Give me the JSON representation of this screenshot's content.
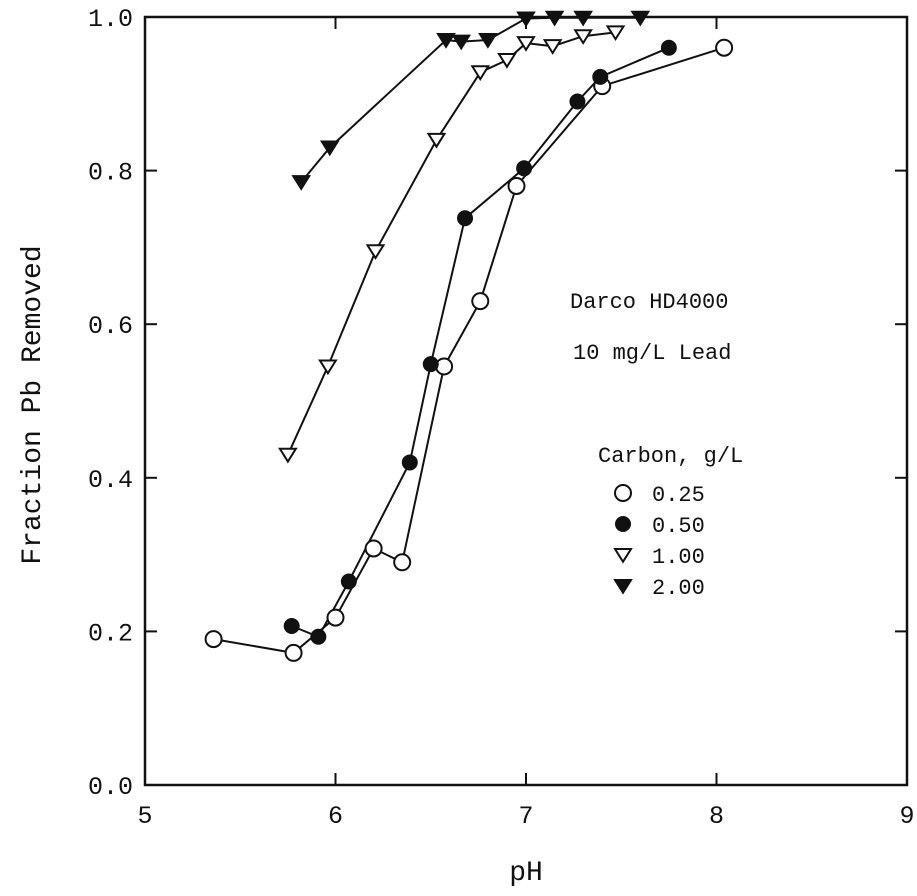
{
  "chart_data": {
    "type": "scatter",
    "title": "",
    "xlabel": "pH",
    "ylabel": "Fraction Pb Removed",
    "xlim": [
      5,
      9
    ],
    "ylim": [
      0.0,
      1.0
    ],
    "x_ticks": [
      5,
      6,
      7,
      8,
      9
    ],
    "y_ticks": [
      0.0,
      0.2,
      0.4,
      0.6,
      0.8,
      1.0
    ],
    "x_tick_labels": [
      "5",
      "6",
      "7",
      "8",
      "9"
    ],
    "y_tick_labels": [
      "0.0",
      "0.2",
      "0.4",
      "0.6",
      "0.8",
      "1.0"
    ],
    "grid": false,
    "legend_position": "right",
    "annotations": [
      "Darco HD4000",
      "10 mg/L Lead"
    ],
    "legend_title": "Carbon, g/L",
    "series": [
      {
        "name": "0.25",
        "marker": "open-circle",
        "points": [
          [
            5.36,
            0.19
          ],
          [
            5.78,
            0.172
          ],
          [
            6.0,
            0.218
          ],
          [
            6.2,
            0.308
          ],
          [
            6.35,
            0.29
          ],
          [
            6.57,
            0.545
          ],
          [
            6.76,
            0.63
          ],
          [
            6.95,
            0.78
          ],
          [
            7.4,
            0.91
          ],
          [
            8.04,
            0.96
          ]
        ]
      },
      {
        "name": "0.50",
        "marker": "filled-circle",
        "points": [
          [
            5.77,
            0.207
          ],
          [
            5.91,
            0.193
          ],
          [
            6.07,
            0.265
          ],
          [
            6.39,
            0.42
          ],
          [
            6.5,
            0.548
          ],
          [
            6.68,
            0.738
          ],
          [
            6.99,
            0.803
          ],
          [
            7.27,
            0.89
          ],
          [
            7.39,
            0.922
          ],
          [
            7.75,
            0.96
          ]
        ]
      },
      {
        "name": "1.00",
        "marker": "open-triangle-down",
        "points": [
          [
            5.75,
            0.43
          ],
          [
            5.96,
            0.545
          ],
          [
            6.21,
            0.695
          ],
          [
            6.53,
            0.84
          ],
          [
            6.76,
            0.928
          ],
          [
            6.9,
            0.944
          ],
          [
            7.0,
            0.966
          ],
          [
            7.14,
            0.962
          ],
          [
            7.3,
            0.975
          ],
          [
            7.47,
            0.98
          ]
        ]
      },
      {
        "name": "2.00",
        "marker": "filled-triangle-down",
        "points": [
          [
            5.82,
            0.785
          ],
          [
            5.97,
            0.83
          ],
          [
            6.58,
            0.97
          ],
          [
            6.66,
            0.968
          ],
          [
            6.8,
            0.97
          ],
          [
            7.0,
            0.998
          ],
          [
            7.15,
            0.999
          ],
          [
            7.3,
            0.999
          ],
          [
            7.6,
            0.999
          ]
        ]
      }
    ]
  }
}
